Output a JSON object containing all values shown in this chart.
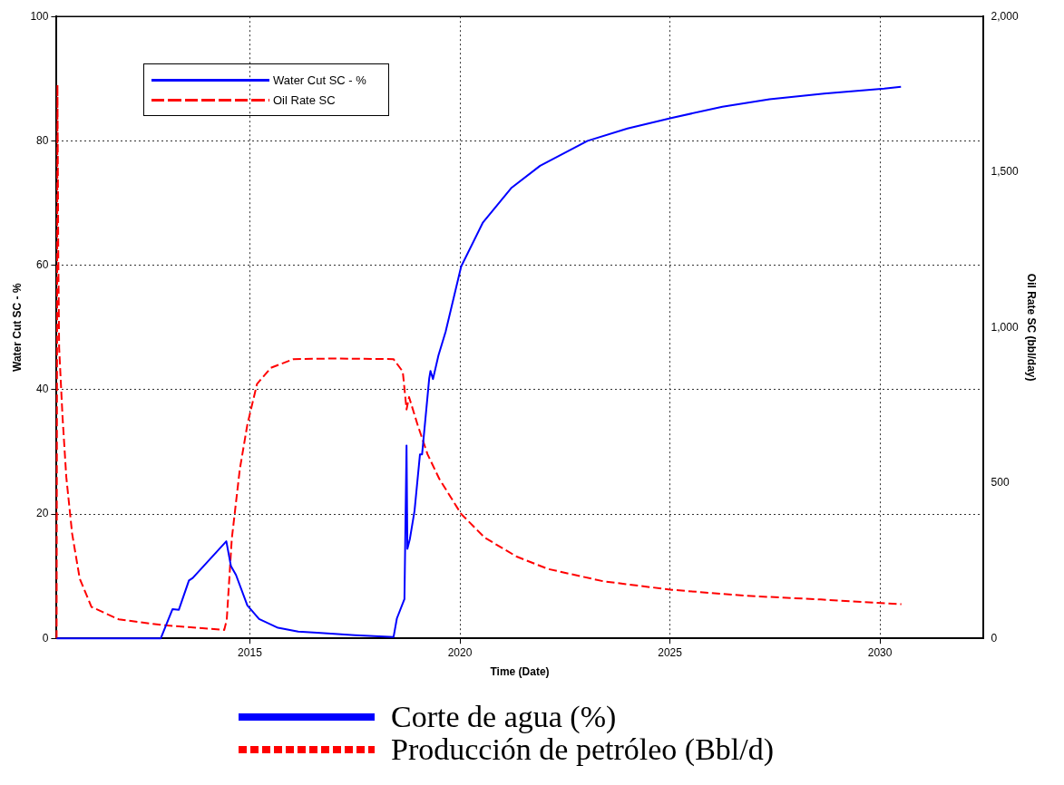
{
  "chart_data": {
    "type": "line",
    "xlabel": "Time (Date)",
    "ylabel": "Water Cut SC - %",
    "y2label": "Oil Rate SC (bbl/day)",
    "xlim": [
      2010.4,
      2032.45
    ],
    "xticks": [
      2015,
      2020,
      2025,
      2030
    ],
    "ylim": [
      0,
      100
    ],
    "yticks": [
      0,
      20,
      40,
      60,
      80,
      100
    ],
    "y2lim": [
      0,
      2000
    ],
    "y2ticks": [
      0,
      500,
      {
        "value": 1000,
        "label": "1,000"
      },
      {
        "value": 1500,
        "label": "1,500"
      },
      {
        "value": 2000,
        "label": "2,000"
      }
    ],
    "grid": true,
    "legend": "top left",
    "marker": "none",
    "annotations": [
      "Corte de agua (%)",
      "Producción de petróleo (Bbl/d)"
    ],
    "series": [
      {
        "name": "Water Cut SC - %",
        "color": "#0000ff",
        "line_style": "solid",
        "x": [
          2010.4,
          2012.88,
          2013.16,
          2013.31,
          2013.55,
          2013.64,
          2014.44,
          2014.55,
          2014.67,
          2014.94,
          2015.22,
          2015.67,
          2016.15,
          2016.6,
          2017.5,
          2018.42,
          2018.5,
          2018.68,
          2018.73,
          2018.75,
          2018.81,
          2018.92,
          2019.05,
          2019.1,
          2019.27,
          2019.3,
          2019.36,
          2019.49,
          2019.66,
          2020.03,
          2020.55,
          2021.22,
          2021.91,
          2023.04,
          2023.99,
          2025.05,
          2026.25,
          2027.37,
          2028.67,
          2030.1,
          2030.5
        ],
        "values": [
          0,
          0,
          4.7,
          4.6,
          9.3,
          9.7,
          15.6,
          11.6,
          10.2,
          5.3,
          3.1,
          1.7,
          1.1,
          0.9,
          0.5,
          0.2,
          3.2,
          6.3,
          31,
          14.4,
          16,
          20.5,
          29.6,
          29.6,
          41.8,
          43,
          41.7,
          45.5,
          49.3,
          59.8,
          66.9,
          72.4,
          76,
          80,
          82,
          83.7,
          85.5,
          86.7,
          87.6,
          88.4,
          88.7
        ]
      },
      {
        "name": "Oil Rate SC",
        "color": "#ff0000",
        "line_style": "dashed",
        "axis": "y2",
        "x": [
          2010.4,
          2010.42,
          2010.44,
          2010.46,
          2010.54,
          2010.63,
          2010.77,
          2010.95,
          2011.23,
          2011.88,
          2012.9,
          2014.39,
          2014.45,
          2014.57,
          2014.76,
          2014.94,
          2015.17,
          2015.5,
          2016.04,
          2017,
          2018.42,
          2018.64,
          2018.73,
          2018.79,
          2019.0,
          2019.23,
          2019.51,
          2020.03,
          2020.59,
          2021.35,
          2022.1,
          2023.43,
          2025.05,
          2026.8,
          2028.59,
          2030.51
        ],
        "values": [
          0,
          1780,
          1220,
          934,
          714,
          519,
          336,
          192,
          101,
          61,
          43,
          27,
          60,
          320,
          543,
          687,
          818,
          870,
          898,
          900,
          898,
          858,
          736,
          776,
          684,
          592,
          513,
          400,
          324,
          263,
          223,
          183,
          156,
          137,
          125,
          110
        ]
      }
    ]
  }
}
